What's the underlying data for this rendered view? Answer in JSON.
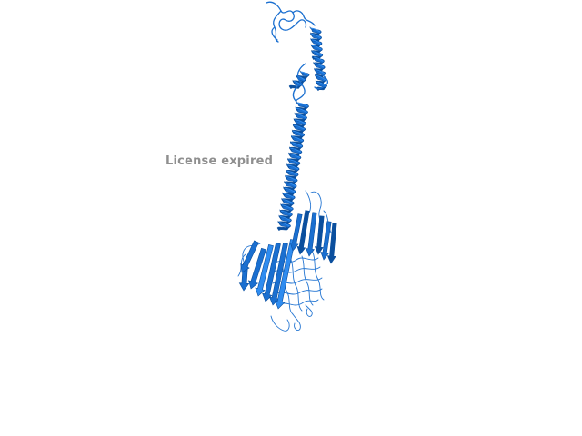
{
  "viewer": {
    "watermark_text": "License expired"
  },
  "structure": {
    "representation": "cartoon",
    "ribbon_color": "#1a6fd0",
    "ribbon_dark": "#0b4f9e",
    "ribbon_light": "#2f8cf0"
  }
}
